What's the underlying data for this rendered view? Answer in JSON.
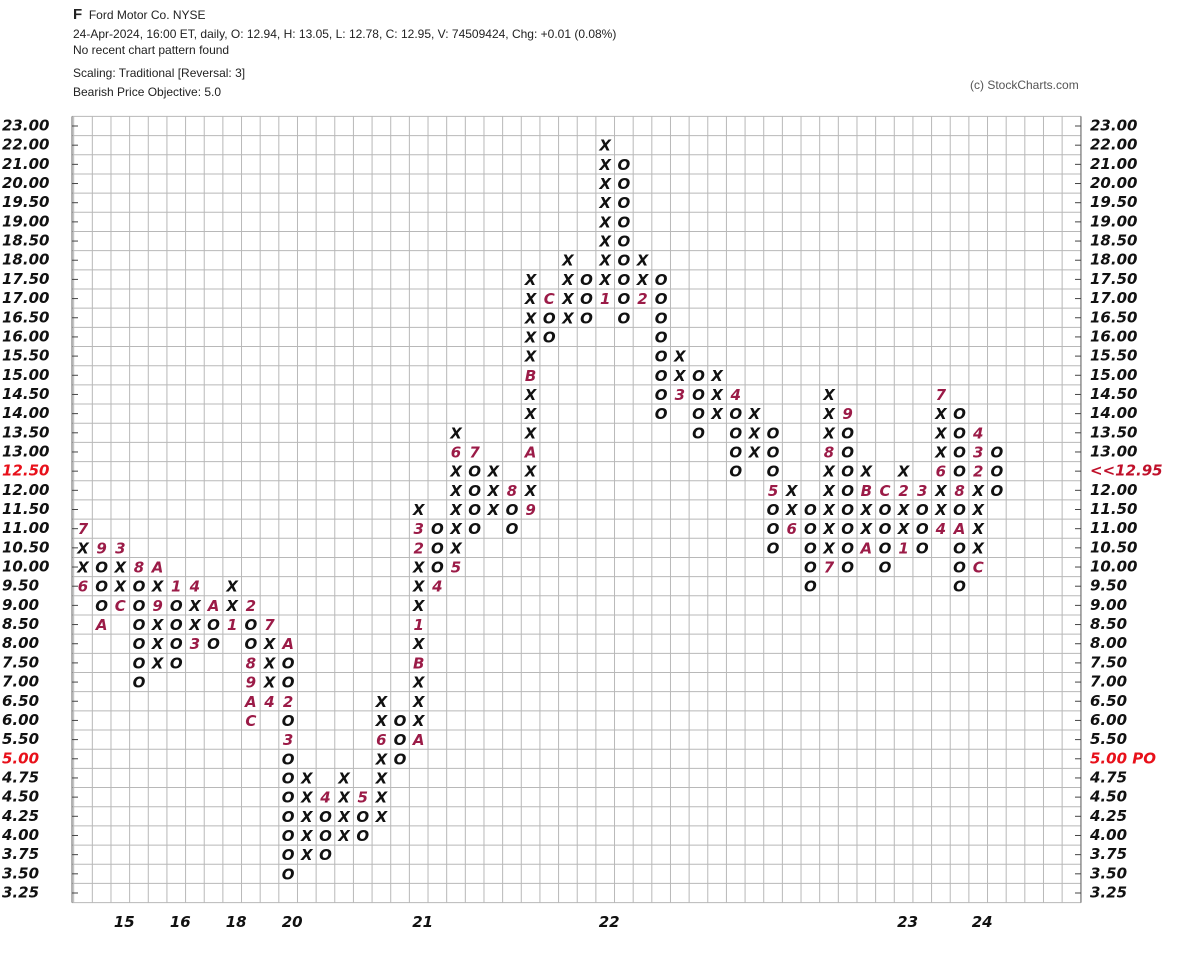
{
  "chart_data": {
    "type": "point-and-figure",
    "symbol": "F",
    "title": "Ford Motor Co.  NYSE",
    "subtitle": "24-Apr-2024, 16:00 ET, daily, O: 12.94, H: 13.05, L: 12.78, C: 12.95, V: 74509424, Chg: +0.01 (0.08%)",
    "pattern": "No recent chart pattern found",
    "scaling": "Scaling: Traditional [Reversal: 3]",
    "objective": "Bearish Price Objective: 5.0",
    "credit": "(c) StockCharts.com",
    "box_color": "#111111",
    "month_color": "#9b1b47",
    "grid_color": "#b8b8b8",
    "yticks": [
      {
        "value": 23,
        "label": "23.00"
      },
      {
        "value": 22,
        "label": "22.00"
      },
      {
        "value": 21,
        "label": "21.00"
      },
      {
        "value": 20,
        "label": "20.00"
      },
      {
        "value": 19.5,
        "label": "19.50"
      },
      {
        "value": 19,
        "label": "19.00"
      },
      {
        "value": 18.5,
        "label": "18.50"
      },
      {
        "value": 18,
        "label": "18.00"
      },
      {
        "value": 17.5,
        "label": "17.50"
      },
      {
        "value": 17,
        "label": "17.00"
      },
      {
        "value": 16.5,
        "label": "16.50"
      },
      {
        "value": 16,
        "label": "16.00"
      },
      {
        "value": 15.5,
        "label": "15.50"
      },
      {
        "value": 15,
        "label": "15.00"
      },
      {
        "value": 14.5,
        "label": "14.50"
      },
      {
        "value": 14,
        "label": "14.00"
      },
      {
        "value": 13.5,
        "label": "13.50"
      },
      {
        "value": 13,
        "label": "13.00"
      },
      {
        "value": 12.5,
        "label": "12.50",
        "color": "#e8101a"
      },
      {
        "value": 12,
        "label": "12.00"
      },
      {
        "value": 11.5,
        "label": "11.50"
      },
      {
        "value": 11,
        "label": "11.00"
      },
      {
        "value": 10.5,
        "label": "10.50"
      },
      {
        "value": 10,
        "label": "10.00"
      },
      {
        "value": 9.5,
        "label": "9.50"
      },
      {
        "value": 9,
        "label": "9.00"
      },
      {
        "value": 8.5,
        "label": "8.50"
      },
      {
        "value": 8,
        "label": "8.00"
      },
      {
        "value": 7.5,
        "label": "7.50"
      },
      {
        "value": 7,
        "label": "7.00"
      },
      {
        "value": 6.5,
        "label": "6.50"
      },
      {
        "value": 6,
        "label": "6.00"
      },
      {
        "value": 5.5,
        "label": "5.50"
      },
      {
        "value": 5,
        "label": "5.00",
        "color": "#e8101a"
      },
      {
        "value": 4.75,
        "label": "4.75"
      },
      {
        "value": 4.5,
        "label": "4.50"
      },
      {
        "value": 4.25,
        "label": "4.25"
      },
      {
        "value": 4,
        "label": "4.00"
      },
      {
        "value": 3.75,
        "label": "3.75"
      },
      {
        "value": 3.5,
        "label": "3.50"
      },
      {
        "value": 3.25,
        "label": "3.25"
      }
    ],
    "y2ticks": [
      {
        "value": 23,
        "label": "23.00"
      },
      {
        "value": 22,
        "label": "22.00"
      },
      {
        "value": 21,
        "label": "21.00"
      },
      {
        "value": 20,
        "label": "20.00"
      },
      {
        "value": 19.5,
        "label": "19.50"
      },
      {
        "value": 19,
        "label": "19.00"
      },
      {
        "value": 18.5,
        "label": "18.50"
      },
      {
        "value": 18,
        "label": "18.00"
      },
      {
        "value": 17.5,
        "label": "17.50"
      },
      {
        "value": 17,
        "label": "17.00"
      },
      {
        "value": 16.5,
        "label": "16.50"
      },
      {
        "value": 16,
        "label": "16.00"
      },
      {
        "value": 15.5,
        "label": "15.50"
      },
      {
        "value": 15,
        "label": "15.00"
      },
      {
        "value": 14.5,
        "label": "14.50"
      },
      {
        "value": 14,
        "label": "14.00"
      },
      {
        "value": 13.5,
        "label": "13.50"
      },
      {
        "value": 13,
        "label": "13.00"
      },
      {
        "value": 12.5,
        "label": "<<12.95",
        "color": "#c0102a"
      },
      {
        "value": 12,
        "label": "12.00"
      },
      {
        "value": 11.5,
        "label": "11.50"
      },
      {
        "value": 11,
        "label": "11.00"
      },
      {
        "value": 10.5,
        "label": "10.50"
      },
      {
        "value": 10,
        "label": "10.00"
      },
      {
        "value": 9.5,
        "label": "9.50"
      },
      {
        "value": 9,
        "label": "9.00"
      },
      {
        "value": 8.5,
        "label": "8.50"
      },
      {
        "value": 8,
        "label": "8.00"
      },
      {
        "value": 7.5,
        "label": "7.50"
      },
      {
        "value": 7,
        "label": "7.00"
      },
      {
        "value": 6.5,
        "label": "6.50"
      },
      {
        "value": 6,
        "label": "6.00"
      },
      {
        "value": 5.5,
        "label": "5.50"
      },
      {
        "value": 5,
        "label": "5.00 PO",
        "color": "#e8101a"
      },
      {
        "value": 4.75,
        "label": "4.75"
      },
      {
        "value": 4.5,
        "label": "4.50"
      },
      {
        "value": 4.25,
        "label": "4.25"
      },
      {
        "value": 4,
        "label": "4.00"
      },
      {
        "value": 3.75,
        "label": "3.75"
      },
      {
        "value": 3.5,
        "label": "3.50"
      },
      {
        "value": 3.25,
        "label": "3.25"
      }
    ],
    "columns": [
      {
        "kind": "X",
        "top": 11,
        "boxes": [
          "7",
          "X",
          "X",
          "6"
        ]
      },
      {
        "kind": "O",
        "top": 10.5,
        "boxes": [
          "9",
          "O",
          "O",
          "O",
          "A"
        ]
      },
      {
        "kind": "X",
        "top": 10.5,
        "boxes": [
          "3",
          "X",
          "X",
          "C"
        ],
        "label": "15"
      },
      {
        "kind": "O",
        "top": 10,
        "boxes": [
          "8",
          "O",
          "O",
          "O",
          "O",
          "O",
          "O"
        ]
      },
      {
        "kind": "X",
        "top": 10,
        "boxes": [
          "A",
          "X",
          "9",
          "X",
          "X",
          "X"
        ]
      },
      {
        "kind": "O",
        "top": 9.5,
        "boxes": [
          "1",
          "O",
          "O",
          "O",
          "O"
        ],
        "label": "16"
      },
      {
        "kind": "X",
        "top": 9.5,
        "boxes": [
          "4",
          "X",
          "X",
          "3"
        ]
      },
      {
        "kind": "O",
        "top": 9,
        "boxes": [
          "A",
          "O",
          "O"
        ]
      },
      {
        "kind": "X",
        "top": 9.5,
        "boxes": [
          "X",
          "X",
          "1"
        ],
        "label": "18"
      },
      {
        "kind": "O",
        "top": 9,
        "boxes": [
          "2",
          "O",
          "O",
          "8",
          "9",
          "A",
          "C"
        ]
      },
      {
        "kind": "X",
        "top": 8.5,
        "boxes": [
          "7",
          "X",
          "X",
          "X",
          "4"
        ]
      },
      {
        "kind": "O",
        "top": 8,
        "boxes": [
          "A",
          "O",
          "O",
          "2",
          "O",
          "3",
          "O",
          "O",
          "O",
          "O",
          "O",
          "O",
          "O"
        ],
        "label": "20"
      },
      {
        "kind": "X",
        "top": 4.75,
        "boxes": [
          "X",
          "X",
          "X",
          "X",
          "X"
        ]
      },
      {
        "kind": "O",
        "top": 4.5,
        "boxes": [
          "4",
          "O",
          "O",
          "O"
        ]
      },
      {
        "kind": "X",
        "top": 4.75,
        "boxes": [
          "X",
          "X",
          "X",
          "X"
        ]
      },
      {
        "kind": "O",
        "top": 4.5,
        "boxes": [
          "5",
          "O",
          "O"
        ]
      },
      {
        "kind": "X",
        "top": 6.5,
        "boxes": [
          "X",
          "X",
          "6",
          "X",
          "X",
          "X",
          "X"
        ]
      },
      {
        "kind": "O",
        "top": 6,
        "boxes": [
          "O",
          "O",
          "O"
        ]
      },
      {
        "kind": "X",
        "top": 11.5,
        "boxes": [
          "X",
          "3",
          "2",
          "X",
          "X",
          "X",
          "1",
          "X",
          "B",
          "X",
          "X",
          "X",
          "A"
        ],
        "label": "21"
      },
      {
        "kind": "O",
        "top": 11,
        "boxes": [
          "O",
          "O",
          "O",
          "4"
        ]
      },
      {
        "kind": "X",
        "top": 13.5,
        "boxes": [
          "X",
          "6",
          "X",
          "X",
          "X",
          "X",
          "X",
          "5"
        ]
      },
      {
        "kind": "O",
        "top": 13,
        "boxes": [
          "7",
          "O",
          "O",
          "O",
          "O"
        ]
      },
      {
        "kind": "X",
        "top": 12.5,
        "boxes": [
          "X",
          "X",
          "X"
        ]
      },
      {
        "kind": "O",
        "top": 12,
        "boxes": [
          "8",
          "O",
          "O"
        ]
      },
      {
        "kind": "X",
        "top": 17.5,
        "boxes": [
          "X",
          "X",
          "X",
          "X",
          "X",
          "B",
          "X",
          "X",
          "X",
          "A",
          "X",
          "X",
          "9"
        ]
      },
      {
        "kind": "O",
        "top": 17,
        "boxes": [
          "C",
          "O",
          "O"
        ]
      },
      {
        "kind": "X",
        "top": 18,
        "boxes": [
          "X",
          "X",
          "X",
          "X"
        ]
      },
      {
        "kind": "O",
        "top": 17.5,
        "boxes": [
          "O",
          "O",
          "O"
        ]
      },
      {
        "kind": "X",
        "top": 22,
        "boxes": [
          "X",
          "X",
          "X",
          "X",
          "X",
          "X",
          "X",
          "X",
          "1"
        ],
        "label": "22"
      },
      {
        "kind": "O",
        "top": 21,
        "boxes": [
          "O",
          "O",
          "O",
          "O",
          "O",
          "O",
          "O",
          "O",
          "O"
        ]
      },
      {
        "kind": "X",
        "top": 18,
        "boxes": [
          "X",
          "X",
          "2"
        ]
      },
      {
        "kind": "O",
        "top": 17.5,
        "boxes": [
          "O",
          "O",
          "O",
          "O",
          "O",
          "O",
          "O",
          "O"
        ]
      },
      {
        "kind": "X",
        "top": 15.5,
        "boxes": [
          "X",
          "X",
          "3"
        ]
      },
      {
        "kind": "O",
        "top": 15,
        "boxes": [
          "O",
          "O",
          "O",
          "O"
        ]
      },
      {
        "kind": "X",
        "top": 15,
        "boxes": [
          "X",
          "X",
          "X"
        ]
      },
      {
        "kind": "O",
        "top": 14.5,
        "boxes": [
          "4",
          "O",
          "O",
          "O",
          "O"
        ]
      },
      {
        "kind": "X",
        "top": 14,
        "boxes": [
          "X",
          "X",
          "X"
        ]
      },
      {
        "kind": "O",
        "top": 13.5,
        "boxes": [
          "O",
          "O",
          "O",
          "5",
          "O",
          "O",
          "O"
        ]
      },
      {
        "kind": "X",
        "top": 12,
        "boxes": [
          "X",
          "X",
          "6"
        ]
      },
      {
        "kind": "O",
        "top": 11.5,
        "boxes": [
          "O",
          "O",
          "O",
          "O",
          "O"
        ]
      },
      {
        "kind": "X",
        "top": 14.5,
        "boxes": [
          "X",
          "X",
          "X",
          "8",
          "X",
          "X",
          "X",
          "X",
          "X",
          "7"
        ]
      },
      {
        "kind": "O",
        "top": 14,
        "boxes": [
          "9",
          "O",
          "O",
          "O",
          "O",
          "O",
          "O",
          "O",
          "O"
        ]
      },
      {
        "kind": "X",
        "top": 12.5,
        "boxes": [
          "X",
          "B",
          "X",
          "X",
          "A"
        ]
      },
      {
        "kind": "O",
        "top": 12,
        "boxes": [
          "C",
          "O",
          "O",
          "O",
          "O"
        ]
      },
      {
        "kind": "X",
        "top": 12.5,
        "boxes": [
          "X",
          "2",
          "X",
          "X",
          "1"
        ],
        "label": "23"
      },
      {
        "kind": "O",
        "top": 12,
        "boxes": [
          "3",
          "O",
          "O",
          "O"
        ]
      },
      {
        "kind": "X",
        "top": 14.5,
        "boxes": [
          "7",
          "X",
          "X",
          "X",
          "6",
          "X",
          "X",
          "4"
        ]
      },
      {
        "kind": "O",
        "top": 14,
        "boxes": [
          "O",
          "O",
          "O",
          "O",
          "8",
          "O",
          "A",
          "O",
          "O",
          "O"
        ]
      },
      {
        "kind": "X",
        "top": 13.5,
        "boxes": [
          "4",
          "3",
          "2",
          "X",
          "X",
          "X",
          "X",
          "C"
        ],
        "label": "24"
      },
      {
        "kind": "O",
        "top": 13,
        "boxes": [
          "O",
          "O",
          "O"
        ]
      }
    ]
  }
}
